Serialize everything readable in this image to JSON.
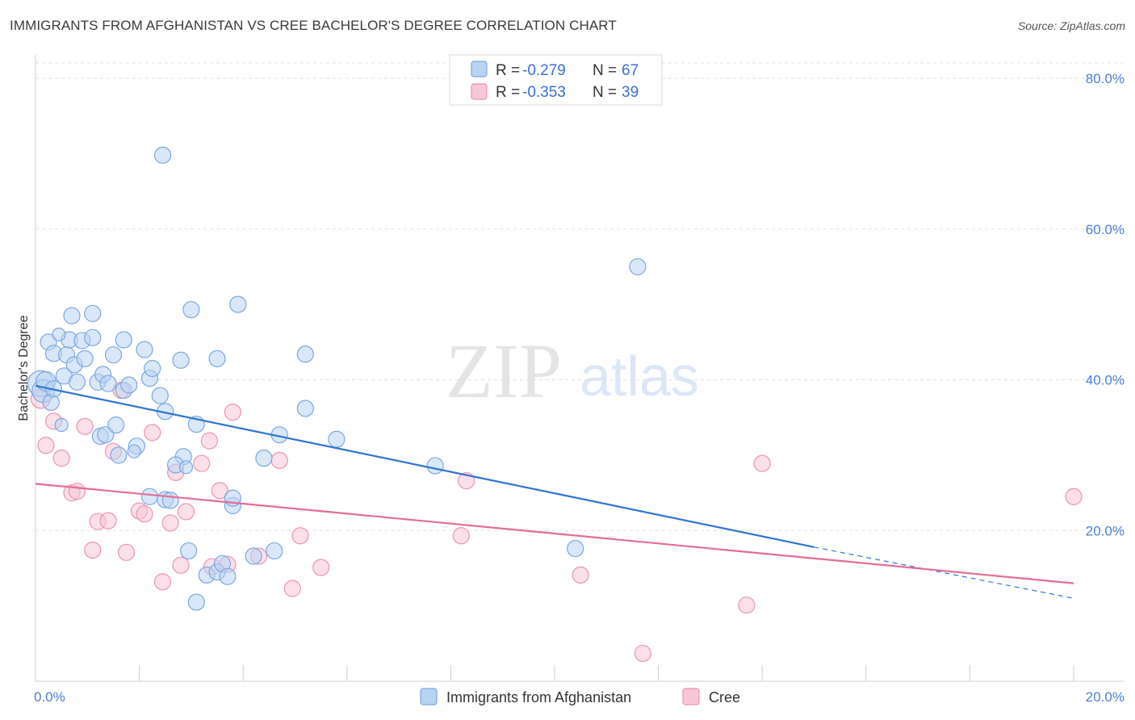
{
  "header": {
    "title": "IMMIGRANTS FROM AFGHANISTAN VS CREE BACHELOR'S DEGREE CORRELATION CHART",
    "source": "Source: ZipAtlas.com"
  },
  "watermark": {
    "zip": "ZIP",
    "atlas": "atlas"
  },
  "colors": {
    "blue_fill": "#b9d3f2",
    "blue_stroke": "#7ba7e0",
    "blue_line": "#2f74d0",
    "pink_fill": "#f8c7d7",
    "pink_stroke": "#ec93b1",
    "pink_line": "#e46c98",
    "tick_label": "#4a7fd4",
    "grid": "#e0e0e0"
  },
  "legend": {
    "items": [
      {
        "r_label": "R =",
        "r_value": "-0.279",
        "n_label": "N =",
        "n_value": "67"
      },
      {
        "r_label": "R =",
        "r_value": "-0.353",
        "n_label": "N =",
        "n_value": "39"
      }
    ],
    "bottom": [
      "Immigrants from Afghanistan",
      "Cree"
    ]
  },
  "chart_data": {
    "type": "scatter",
    "title": "IMMIGRANTS FROM AFGHANISTAN VS CREE BACHELOR'S DEGREE CORRELATION CHART",
    "xlabel": "",
    "ylabel": "Bachelor's Degree",
    "xlim": [
      0,
      20
    ],
    "ylim": [
      0,
      80
    ],
    "x_tick_labels": [
      "0.0%",
      "20.0%"
    ],
    "y_ticks": [
      20,
      40,
      60,
      80
    ],
    "y_tick_labels": [
      "20.0%",
      "40.0%",
      "60.0%",
      "80.0%"
    ],
    "grid": "horizontal dashed",
    "legend_position": "top-center",
    "series": [
      {
        "name": "Immigrants from Afghanistan",
        "r": -0.279,
        "n": 67,
        "trend": {
          "x": [
            0,
            15
          ],
          "y": [
            39.2,
            17.8
          ],
          "dashed_to": [
            20,
            11.0
          ]
        },
        "points": [
          [
            0.1,
            39.5,
            16
          ],
          [
            0.15,
            38.5,
            14
          ],
          [
            0.2,
            39.8,
            12
          ],
          [
            0.3,
            37,
            10
          ],
          [
            0.35,
            38.8,
            10
          ],
          [
            0.25,
            45,
            10
          ],
          [
            0.35,
            43.5,
            10
          ],
          [
            0.55,
            40.5,
            10
          ],
          [
            0.6,
            43.3,
            10
          ],
          [
            0.65,
            45.3,
            10
          ],
          [
            0.75,
            42,
            10
          ],
          [
            0.8,
            39.7,
            10
          ],
          [
            0.7,
            48.5,
            10
          ],
          [
            0.9,
            45.2,
            10
          ],
          [
            0.95,
            42.8,
            10
          ],
          [
            1.1,
            45.6,
            10
          ],
          [
            1.1,
            48.8,
            10
          ],
          [
            1.2,
            39.7,
            10
          ],
          [
            1.3,
            40.7,
            10
          ],
          [
            1.4,
            39.5,
            10
          ],
          [
            1.5,
            43.3,
            10
          ],
          [
            1.25,
            32.5,
            10
          ],
          [
            1.35,
            32.7,
            10
          ],
          [
            1.55,
            34,
            10
          ],
          [
            1.6,
            30,
            10
          ],
          [
            1.7,
            45.3,
            10
          ],
          [
            1.7,
            38.6,
            10
          ],
          [
            1.8,
            39.3,
            10
          ],
          [
            1.95,
            31.2,
            10
          ],
          [
            2.1,
            44,
            10
          ],
          [
            2.2,
            40.2,
            10
          ],
          [
            2.25,
            41.5,
            10
          ],
          [
            2.2,
            24.5,
            10
          ],
          [
            2.4,
            37.9,
            10
          ],
          [
            2.5,
            35.8,
            10
          ],
          [
            2.5,
            24.1,
            10
          ],
          [
            2.6,
            24,
            10
          ],
          [
            2.8,
            42.6,
            10
          ],
          [
            2.85,
            29.8,
            10
          ],
          [
            2.7,
            28.7,
            10
          ],
          [
            2.95,
            17.3,
            10
          ],
          [
            3.0,
            49.3,
            10
          ],
          [
            3.1,
            34.1,
            10
          ],
          [
            3.1,
            10.5,
            10
          ],
          [
            3.3,
            14.1,
            10
          ],
          [
            3.5,
            14.5,
            10
          ],
          [
            3.5,
            42.8,
            10
          ],
          [
            3.6,
            15.6,
            10
          ],
          [
            3.7,
            13.9,
            10
          ],
          [
            3.8,
            23.3,
            10
          ],
          [
            3.8,
            24.3,
            10
          ],
          [
            3.9,
            50,
            10
          ],
          [
            4.2,
            16.6,
            10
          ],
          [
            4.4,
            29.6,
            10
          ],
          [
            4.6,
            17.3,
            10
          ],
          [
            4.7,
            32.7,
            10
          ],
          [
            5.2,
            43.4,
            10
          ],
          [
            5.2,
            36.2,
            10
          ],
          [
            5.8,
            32.1,
            10
          ],
          [
            7.7,
            28.6,
            10
          ],
          [
            10.4,
            17.6,
            10
          ],
          [
            11.6,
            55,
            10
          ],
          [
            0.45,
            46,
            8
          ],
          [
            1.9,
            30.5,
            8
          ],
          [
            2.9,
            28.4,
            8
          ],
          [
            0.5,
            34,
            8
          ],
          [
            2.45,
            69.8,
            10
          ]
        ]
      },
      {
        "name": "Cree",
        "r": -0.353,
        "n": 39,
        "trend": {
          "x": [
            0,
            20
          ],
          "y": [
            26.2,
            13.0
          ]
        },
        "points": [
          [
            0.1,
            37.5,
            12
          ],
          [
            0.2,
            31.3,
            10
          ],
          [
            0.35,
            34.5,
            10
          ],
          [
            0.5,
            29.6,
            10
          ],
          [
            0.7,
            25,
            10
          ],
          [
            0.8,
            25.2,
            10
          ],
          [
            0.95,
            33.8,
            10
          ],
          [
            1.1,
            17.4,
            10
          ],
          [
            1.2,
            21.2,
            10
          ],
          [
            1.4,
            21.3,
            10
          ],
          [
            1.5,
            30.5,
            10
          ],
          [
            1.65,
            38.6,
            10
          ],
          [
            1.75,
            17.1,
            10
          ],
          [
            2.0,
            22.6,
            10
          ],
          [
            2.1,
            22.2,
            10
          ],
          [
            2.25,
            33,
            10
          ],
          [
            2.45,
            13.2,
            10
          ],
          [
            2.6,
            21,
            10
          ],
          [
            2.7,
            27.7,
            10
          ],
          [
            2.8,
            15.4,
            10
          ],
          [
            2.9,
            22.5,
            10
          ],
          [
            3.2,
            28.9,
            10
          ],
          [
            3.35,
            31.9,
            10
          ],
          [
            3.4,
            15.2,
            10
          ],
          [
            3.55,
            25.3,
            10
          ],
          [
            3.7,
            15.5,
            10
          ],
          [
            3.8,
            35.7,
            10
          ],
          [
            4.3,
            16.6,
            10
          ],
          [
            4.7,
            29.3,
            10
          ],
          [
            4.95,
            12.3,
            10
          ],
          [
            5.1,
            19.3,
            10
          ],
          [
            5.5,
            15.1,
            10
          ],
          [
            8.2,
            19.3,
            10
          ],
          [
            8.3,
            26.6,
            10
          ],
          [
            10.5,
            14.1,
            10
          ],
          [
            11.7,
            3.7,
            10
          ],
          [
            13.7,
            10.1,
            10
          ],
          [
            14.0,
            28.9,
            10
          ],
          [
            20.0,
            24.5,
            10
          ]
        ]
      }
    ]
  }
}
